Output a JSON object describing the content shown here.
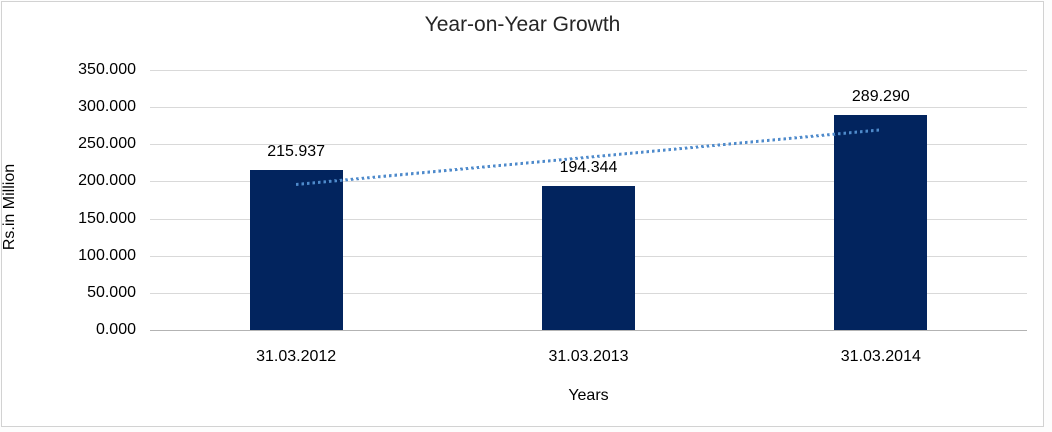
{
  "chart_data": {
    "type": "bar",
    "title": "Year-on-Year Growth",
    "xlabel": "Years",
    "ylabel": "Rs.in Million",
    "categories": [
      "31.03.2012",
      "31.03.2013",
      "31.03.2014"
    ],
    "values": [
      215.937,
      194.344,
      289.29
    ],
    "data_labels": [
      "215.937",
      "194.344",
      "289.290"
    ],
    "y_ticks": [
      {
        "value": 0,
        "label": "0.000"
      },
      {
        "value": 50,
        "label": "50.000"
      },
      {
        "value": 100,
        "label": "100.000"
      },
      {
        "value": 150,
        "label": "150.000"
      },
      {
        "value": 200,
        "label": "200.000"
      },
      {
        "value": 250,
        "label": "250.000"
      },
      {
        "value": 300,
        "label": "300.000"
      },
      {
        "value": 350,
        "label": "350.000"
      }
    ],
    "ylim": [
      0,
      350
    ],
    "grid": true,
    "legend": "none",
    "bar_color": "#02245E",
    "trendline": {
      "style": "dotted",
      "color": "#4E8ACB",
      "start_value": 196.5,
      "end_value": 270.0
    }
  },
  "colors": {
    "gridline": "#d9d9d9",
    "axis_line": "#b3b3b3",
    "frame_border": "#d2d2d2",
    "background": "#ffffff",
    "text": "#000000"
  }
}
